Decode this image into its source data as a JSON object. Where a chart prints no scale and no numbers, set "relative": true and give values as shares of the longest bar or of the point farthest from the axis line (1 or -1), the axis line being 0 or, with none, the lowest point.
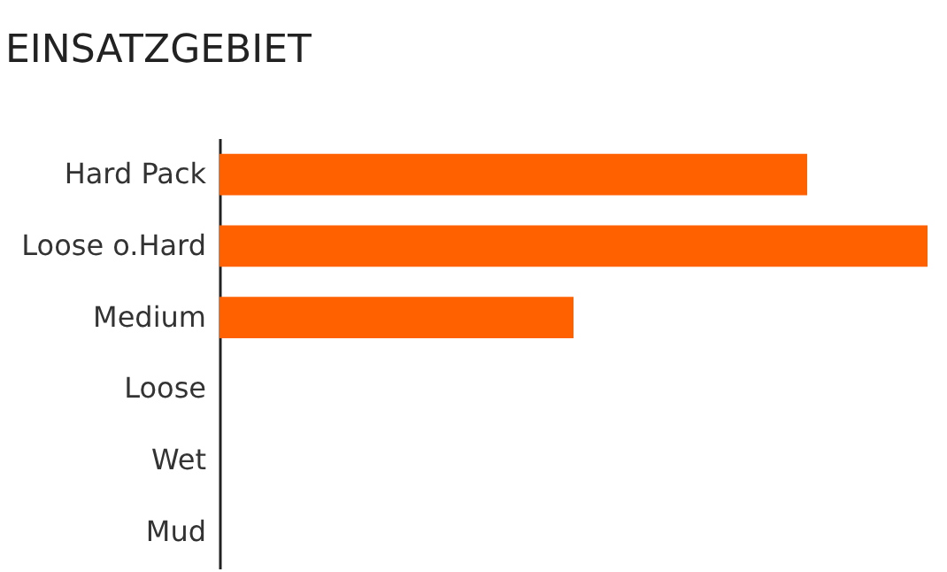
{
  "chart_data": {
    "type": "bar",
    "title": "EINSATZGEBIET",
    "orientation": "horizontal",
    "relative": true,
    "categories": [
      "Hard Pack",
      "Loose o.Hard",
      "Medium",
      "Loose",
      "Wet",
      "Mud"
    ],
    "values": [
      0.83,
      1,
      0.5,
      0,
      0,
      0
    ],
    "color": "#ff6000"
  }
}
